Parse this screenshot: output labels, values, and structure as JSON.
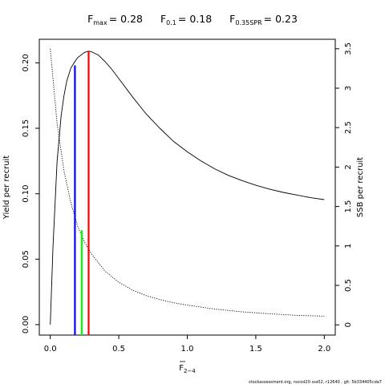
{
  "chart_data": {
    "type": "line",
    "title": {
      "fmax": {
        "label": "F",
        "sub": "max",
        "value": "= 0.28"
      },
      "f01": {
        "label": "F",
        "sub": "0.1",
        "value": "= 0.18"
      },
      "fspr": {
        "label": "F",
        "sub": "0.35SPR",
        "value": "= 0.23"
      }
    },
    "xlabel": {
      "main": "F",
      "sub": "2−4"
    },
    "ylabel": "Yield per recruit",
    "y2label": "SSB per recruit",
    "xlim": [
      -0.08,
      2.08
    ],
    "ylim": [
      -0.008,
      0.218
    ],
    "y2lim": [
      -0.13,
      3.62
    ],
    "x_ticks": [
      "0.0",
      "0.5",
      "1.0",
      "1.5",
      "2.0"
    ],
    "y_ticks": [
      "0.00",
      "0.05",
      "0.10",
      "0.15",
      "0.20"
    ],
    "y2_ticks": [
      "0",
      "0.5",
      "1",
      "1.5",
      "2",
      "2.5",
      "3",
      "3.5"
    ],
    "series": [
      {
        "axis": "left",
        "style": "solid",
        "color": "#000000",
        "x": [
          0,
          0.02,
          0.05,
          0.08,
          0.1,
          0.12,
          0.15,
          0.18,
          0.2,
          0.25,
          0.28,
          0.3,
          0.35,
          0.4,
          0.45,
          0.5,
          0.6,
          0.7,
          0.8,
          0.9,
          1.0,
          1.1,
          1.2,
          1.3,
          1.4,
          1.5,
          1.6,
          1.7,
          1.8,
          1.9,
          2.0
        ],
        "y": [
          0,
          0.06,
          0.125,
          0.16,
          0.175,
          0.186,
          0.196,
          0.201,
          0.204,
          0.208,
          0.209,
          0.2085,
          0.206,
          0.201,
          0.195,
          0.188,
          0.174,
          0.161,
          0.15,
          0.14,
          0.132,
          0.125,
          0.119,
          0.114,
          0.11,
          0.1065,
          0.1035,
          0.101,
          0.099,
          0.097,
          0.0955
        ]
      },
      {
        "axis": "right",
        "style": "dotted",
        "color": "#000000",
        "x": [
          0,
          0.05,
          0.1,
          0.15,
          0.2,
          0.25,
          0.3,
          0.4,
          0.5,
          0.6,
          0.7,
          0.8,
          0.9,
          1.0,
          1.2,
          1.4,
          1.6,
          1.8,
          2.0
        ],
        "y": [
          3.5,
          2.55,
          1.95,
          1.55,
          1.25,
          1.05,
          0.9,
          0.68,
          0.54,
          0.44,
          0.37,
          0.32,
          0.28,
          0.25,
          0.2,
          0.165,
          0.14,
          0.12,
          0.11
        ]
      }
    ],
    "reference_lines": [
      {
        "name": "F0.1",
        "x": 0.18,
        "top": 0.198,
        "axis": "left",
        "color": "#0000ff"
      },
      {
        "name": "Fmax",
        "x": 0.28,
        "top": 0.209,
        "axis": "left",
        "color": "#ff0000"
      },
      {
        "name": "F0.35SPR",
        "x": 0.23,
        "top": 1.2,
        "axis": "right",
        "color": "#00ff00"
      }
    ],
    "grid": false,
    "footer": "stockassessment.org, nscod20 sss02, r12640 , git: 5b334405cda7"
  }
}
